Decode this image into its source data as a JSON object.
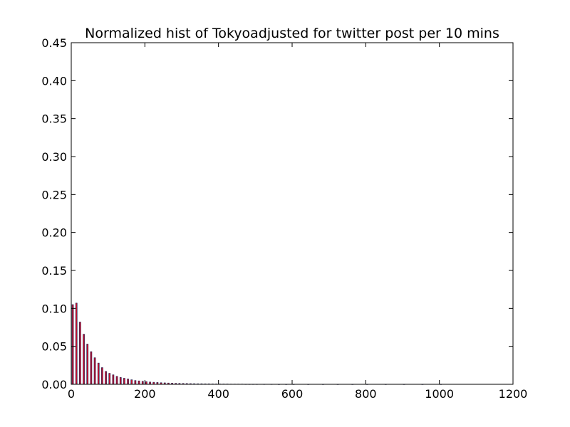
{
  "chart_data": {
    "type": "bar",
    "title": "Normalized hist of Tokyoadjusted for twitter post per 10 mins",
    "xlabel": "",
    "ylabel": "",
    "xlim": [
      0,
      1200
    ],
    "ylim": [
      0,
      0.45
    ],
    "xticks": [
      "0",
      "200",
      "400",
      "600",
      "800",
      "1000",
      "1200"
    ],
    "yticks": [
      "0.00",
      "0.05",
      "0.10",
      "0.15",
      "0.20",
      "0.25",
      "0.30",
      "0.35",
      "0.40",
      "0.45"
    ],
    "grid": false,
    "legend": "none",
    "bar_color": "#c8102e",
    "bar_edge_color": "#1a1a4d",
    "bar_width": 4,
    "x": [
      2,
      12,
      22,
      32,
      42,
      52,
      62,
      72,
      82,
      92,
      102,
      112,
      122,
      132,
      142,
      152,
      162,
      172,
      182,
      192,
      202,
      212,
      222,
      232,
      242,
      252,
      262,
      272,
      282,
      292,
      302,
      312,
      322,
      332,
      342,
      352,
      362,
      372,
      382,
      392,
      402,
      412,
      422,
      432,
      442,
      452,
      462,
      472,
      482,
      492,
      502,
      522,
      542,
      562,
      582,
      602,
      642,
      682,
      722,
      762,
      802,
      852,
      902,
      952,
      1002
    ],
    "values": [
      0.105,
      0.107,
      0.082,
      0.066,
      0.053,
      0.043,
      0.035,
      0.028,
      0.022,
      0.017,
      0.0145,
      0.0125,
      0.0105,
      0.009,
      0.008,
      0.007,
      0.006,
      0.005,
      0.0045,
      0.004,
      0.0035,
      0.003,
      0.0027,
      0.0024,
      0.0021,
      0.0019,
      0.0017,
      0.0015,
      0.0013,
      0.0012,
      0.0011,
      0.001,
      0.0009,
      0.0008,
      0.0007,
      0.0007,
      0.0006,
      0.0006,
      0.0005,
      0.0005,
      0.0004,
      0.0004,
      0.0004,
      0.0003,
      0.0003,
      0.0003,
      0.0003,
      0.0002,
      0.0002,
      0.0002,
      0.0002,
      0.0002,
      0.0002,
      0.0001,
      0.0001,
      0.0001,
      0.0001,
      0.0001,
      0.0001,
      0.0001,
      0.0001,
      0.0001,
      0.0001,
      0.0001,
      0.0001
    ]
  }
}
